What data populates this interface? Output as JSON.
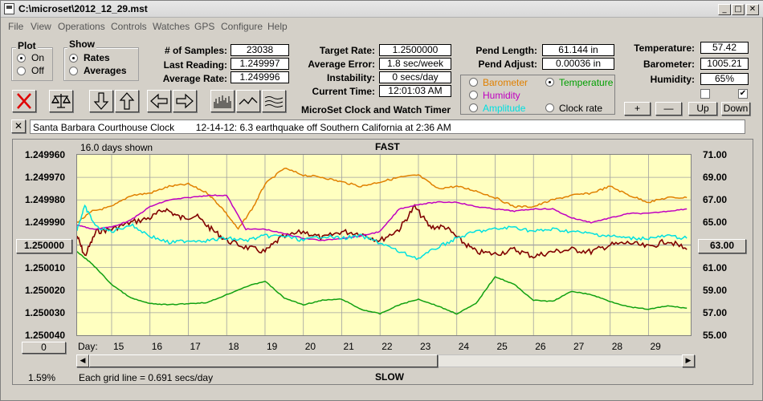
{
  "window": {
    "title": "C:\\microset\\2012_12_29.mst",
    "controls": {
      "minimize": "_",
      "maximize": "□",
      "close": "✕"
    }
  },
  "menu": [
    "File",
    "View",
    "Operations",
    "Controls",
    "Watches",
    "GPS",
    "Configure",
    "Help"
  ],
  "plot_group": {
    "title": "Plot",
    "on": "On",
    "off": "Off",
    "selected": "On"
  },
  "show_group": {
    "title": "Show",
    "rates": "Rates",
    "averages": "Averages",
    "selected": "Rates"
  },
  "stats": {
    "samples_label": "# of Samples:",
    "samples_value": "23038",
    "last_label": "Last Reading:",
    "last_value": "1.249997",
    "avg_label": "Average Rate:",
    "avg_value": "1.249996"
  },
  "targets": {
    "target_label": "Target Rate:",
    "target_value": "1.2500000",
    "error_label": "Average Error:",
    "error_value": "1.8 sec/week",
    "instab_label": "Instability:",
    "instab_value": "0 secs/day",
    "time_label": "Current Time:",
    "time_value": "12:01:03 AM"
  },
  "pendulum": {
    "length_label": "Pend Length:",
    "length_value": "61.144 in",
    "adjust_label": "Pend Adjust:",
    "adjust_value": "0.00036 in"
  },
  "environment": {
    "temp_label": "Temperature:",
    "temp_value": "57.42",
    "baro_label": "Barometer:",
    "baro_value": "1005.21",
    "humid_label": "Humidity:",
    "humid_value": "65%",
    "check_left": false,
    "check_right": true
  },
  "overlay_options": {
    "barometer": "Barometer",
    "temperature": "Temperature",
    "humidity": "Humidity",
    "amplitude": "Amplitude",
    "clock_rate": "Clock rate",
    "selected": "Temperature",
    "colors": {
      "barometer": "#e08000",
      "temperature": "#00a000",
      "humidity": "#c000c0",
      "amplitude": "#00e0e0",
      "clock_rate": "#000000"
    }
  },
  "app_caption": "MicroSet Clock and Watch Timer",
  "adjust_buttons": {
    "plus": "+",
    "minus": "—",
    "up": "Up",
    "down": "Down"
  },
  "note": {
    "close": "✕",
    "text": "Santa Barbara Courthouse Clock        12-14-12: 6.3 earthquake off Southern California at 2:36 AM"
  },
  "chart_data": {
    "type": "line",
    "days_shown": "16.0 days shown",
    "top_label": "FAST",
    "bottom_label": "SLOW",
    "grid_note": "Each grid line = 0.691 secs/day",
    "percent": "1.59%",
    "center_left_value": "1.250000",
    "center_right_value": "63.00",
    "left_offset_button": "0",
    "x_label": "Day:",
    "x": [
      15,
      16,
      17,
      18,
      19,
      20,
      21,
      22,
      23,
      24,
      25,
      26,
      27,
      28,
      29
    ],
    "x_range": [
      14.1,
      30.1
    ],
    "left_axis": {
      "ticks": [
        "1.249960",
        "1.249970",
        "1.249980",
        "1.249990",
        "1.250000",
        "1.250010",
        "1.250020",
        "1.250030",
        "1.250040"
      ],
      "range": [
        1.24996,
        1.25004
      ]
    },
    "right_axis": {
      "ticks": [
        "71.00",
        "69.00",
        "67.00",
        "65.00",
        "63.00",
        "61.00",
        "59.00",
        "57.00",
        "55.00"
      ],
      "range": [
        55,
        71
      ]
    },
    "series": [
      {
        "color": "#800000",
        "axis": "left",
        "values": [
          [
            14.1,
            1.249996
          ],
          [
            14.3,
            1.250005
          ],
          [
            14.6,
            1.249994
          ],
          [
            15.0,
            1.249993
          ],
          [
            15.5,
            1.24999
          ],
          [
            16.0,
            1.249988
          ],
          [
            16.4,
            1.249984
          ],
          [
            16.8,
            1.249988
          ],
          [
            17.2,
            1.249987
          ],
          [
            17.6,
            1.249993
          ],
          [
            18.0,
            1.249998
          ],
          [
            18.5,
            1.250001
          ],
          [
            19.0,
            1.250003
          ],
          [
            19.4,
            1.249997
          ],
          [
            20.0,
            1.249994
          ],
          [
            20.5,
            1.249997
          ],
          [
            21.0,
            1.249994
          ],
          [
            21.5,
            1.249995
          ],
          [
            22.0,
            1.249998
          ],
          [
            22.5,
            1.249993
          ],
          [
            22.9,
            1.249983
          ],
          [
            23.3,
            1.249992
          ],
          [
            23.7,
            1.249992
          ],
          [
            24.1,
            1.249998
          ],
          [
            24.5,
            1.250003
          ],
          [
            25.0,
            1.250004
          ],
          [
            25.5,
            1.250002
          ],
          [
            26.0,
            1.250005
          ],
          [
            26.5,
            1.250003
          ],
          [
            27.0,
            1.250002
          ],
          [
            27.5,
            1.250003
          ],
          [
            28.0,
            1.25
          ],
          [
            28.5,
            1.249999
          ],
          [
            29.0,
            1.250001
          ],
          [
            29.5,
            1.249998
          ],
          [
            30.0,
            1.250002
          ]
        ]
      },
      {
        "color": "#e08000",
        "axis": "left",
        "values": [
          [
            14.1,
            1.24999
          ],
          [
            14.5,
            1.249985
          ],
          [
            15.0,
            1.249983
          ],
          [
            15.5,
            1.249978
          ],
          [
            16.0,
            1.249977
          ],
          [
            16.5,
            1.249974
          ],
          [
            17.0,
            1.249973
          ],
          [
            17.5,
            1.249977
          ],
          [
            17.9,
            1.249984
          ],
          [
            18.3,
            1.249993
          ],
          [
            18.7,
            1.249983
          ],
          [
            19.0,
            1.249973
          ],
          [
            19.5,
            1.249966
          ],
          [
            20.0,
            1.249969
          ],
          [
            20.5,
            1.24997
          ],
          [
            21.0,
            1.249972
          ],
          [
            21.5,
            1.249974
          ],
          [
            22.0,
            1.249972
          ],
          [
            22.5,
            1.24997
          ],
          [
            23.0,
            1.249969
          ],
          [
            23.5,
            1.249975
          ],
          [
            24.0,
            1.249974
          ],
          [
            24.5,
            1.249976
          ],
          [
            25.0,
            1.249979
          ],
          [
            25.5,
            1.249983
          ],
          [
            26.0,
            1.249983
          ],
          [
            26.5,
            1.24998
          ],
          [
            27.0,
            1.249978
          ],
          [
            27.5,
            1.249977
          ],
          [
            28.0,
            1.249974
          ],
          [
            28.5,
            1.249978
          ],
          [
            29.0,
            1.249981
          ],
          [
            29.5,
            1.249979
          ],
          [
            30.0,
            1.249979
          ]
        ]
      },
      {
        "color": "#c000c0",
        "axis": "left",
        "values": [
          [
            14.1,
            1.249991
          ],
          [
            14.5,
            1.249993
          ],
          [
            15.0,
            1.249992
          ],
          [
            15.5,
            1.249989
          ],
          [
            16.0,
            1.249983
          ],
          [
            16.5,
            1.24998
          ],
          [
            17.0,
            1.249979
          ],
          [
            17.5,
            1.249978
          ],
          [
            18.0,
            1.249978
          ],
          [
            18.5,
            1.249993
          ],
          [
            19.0,
            1.249993
          ],
          [
            19.5,
            1.249995
          ],
          [
            20.0,
            1.249997
          ],
          [
            20.5,
            1.249998
          ],
          [
            21.0,
            1.249997
          ],
          [
            21.5,
            1.249996
          ],
          [
            22.0,
            1.249994
          ],
          [
            22.5,
            1.249984
          ],
          [
            23.0,
            1.249982
          ],
          [
            23.5,
            1.249981
          ],
          [
            24.0,
            1.249981
          ],
          [
            24.5,
            1.249983
          ],
          [
            25.0,
            1.249984
          ],
          [
            25.5,
            1.249985
          ],
          [
            26.0,
            1.249984
          ],
          [
            26.5,
            1.249984
          ],
          [
            27.0,
            1.249988
          ],
          [
            27.5,
            1.24999
          ],
          [
            28.0,
            1.249988
          ],
          [
            28.5,
            1.249986
          ],
          [
            29.0,
            1.249986
          ],
          [
            29.5,
            1.249985
          ],
          [
            30.0,
            1.249984
          ]
        ]
      },
      {
        "color": "#00e0e0",
        "axis": "left",
        "values": [
          [
            14.1,
            1.249993
          ],
          [
            14.3,
            1.249983
          ],
          [
            14.6,
            1.249992
          ],
          [
            15.0,
            1.249994
          ],
          [
            15.5,
            1.249991
          ],
          [
            16.0,
            1.249996
          ],
          [
            16.5,
            1.249999
          ],
          [
            17.0,
            1.249998
          ],
          [
            17.5,
            1.249998
          ],
          [
            18.0,
            1.249997
          ],
          [
            18.5,
            1.249998
          ],
          [
            19.0,
            1.249996
          ],
          [
            19.5,
            1.249996
          ],
          [
            20.0,
            1.249998
          ],
          [
            20.5,
            1.249996
          ],
          [
            21.0,
            1.249997
          ],
          [
            21.5,
            1.249996
          ],
          [
            22.0,
            1.249999
          ],
          [
            22.5,
            1.250003
          ],
          [
            23.0,
            1.250006
          ],
          [
            23.5,
            1.250001
          ],
          [
            24.0,
            1.249997
          ],
          [
            24.5,
            1.249994
          ],
          [
            25.0,
            1.249993
          ],
          [
            25.5,
            1.249992
          ],
          [
            26.0,
            1.249994
          ],
          [
            26.5,
            1.249993
          ],
          [
            27.0,
            1.249994
          ],
          [
            27.5,
            1.249995
          ],
          [
            28.0,
            1.249996
          ],
          [
            28.5,
            1.249997
          ],
          [
            29.0,
            1.249997
          ],
          [
            29.5,
            1.249996
          ],
          [
            30.0,
            1.249997
          ]
        ]
      },
      {
        "color": "#10a010",
        "axis": "right",
        "values": [
          [
            14.1,
            62.4
          ],
          [
            14.5,
            61.3
          ],
          [
            15.0,
            59.5
          ],
          [
            15.5,
            58.3
          ],
          [
            16.0,
            57.8
          ],
          [
            16.5,
            57.7
          ],
          [
            17.0,
            57.8
          ],
          [
            17.5,
            57.9
          ],
          [
            18.0,
            58.6
          ],
          [
            18.5,
            59.3
          ],
          [
            19.0,
            59.8
          ],
          [
            19.5,
            58.3
          ],
          [
            20.0,
            57.7
          ],
          [
            20.5,
            58.1
          ],
          [
            21.0,
            58.2
          ],
          [
            21.5,
            57.3
          ],
          [
            22.0,
            56.9
          ],
          [
            22.5,
            57.7
          ],
          [
            23.0,
            58.2
          ],
          [
            23.5,
            57.6
          ],
          [
            24.0,
            56.9
          ],
          [
            24.5,
            57.8
          ],
          [
            25.0,
            60.2
          ],
          [
            25.5,
            59.5
          ],
          [
            26.0,
            58.1
          ],
          [
            26.5,
            58.0
          ],
          [
            27.0,
            58.9
          ],
          [
            27.5,
            58.6
          ],
          [
            28.0,
            58.0
          ],
          [
            28.5,
            57.5
          ],
          [
            29.0,
            57.3
          ],
          [
            29.5,
            57.6
          ],
          [
            30.0,
            57.4
          ]
        ]
      }
    ]
  }
}
